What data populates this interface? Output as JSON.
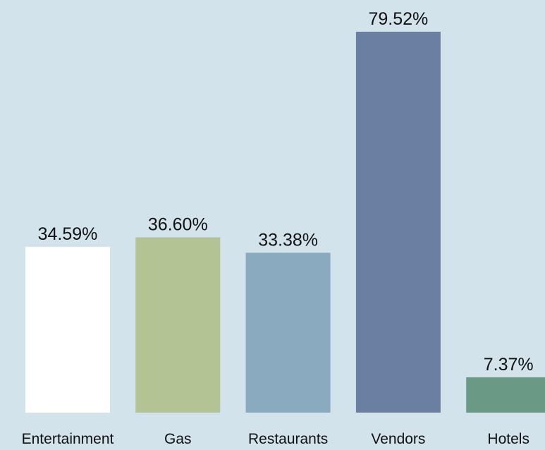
{
  "chart_data": {
    "type": "bar",
    "categories": [
      "Entertainment",
      "Gas",
      "Restaurants",
      "Vendors",
      "Hotels"
    ],
    "values": [
      34.59,
      36.6,
      33.38,
      79.52,
      7.37
    ],
    "value_labels": [
      "34.59%",
      "36.60%",
      "33.38%",
      "79.52%",
      "7.37%"
    ],
    "colors": [
      "#ffffff",
      "#b3c394",
      "#8aabbf",
      "#6b7fa3",
      "#6a9a85"
    ]
  }
}
